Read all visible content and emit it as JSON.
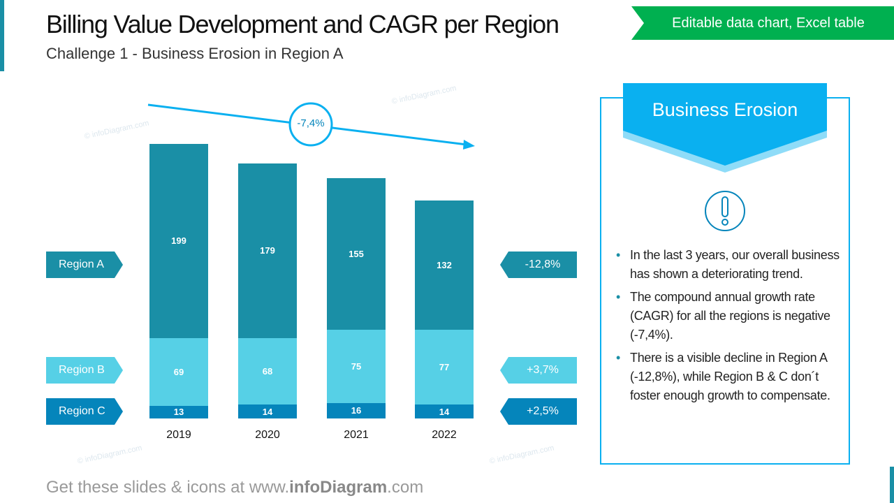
{
  "header": {
    "title": "Billing Value Development and CAGR per Region",
    "subtitle": "Challenge 1 - Business Erosion in Region A",
    "badge": "Editable data chart, Excel table"
  },
  "colors": {
    "region_a": "#1a8fa6",
    "region_b": "#56d0e6",
    "region_c": "#0585bb",
    "accent": "#0ab0f0",
    "badge": "#00b050"
  },
  "chart_data": {
    "type": "bar",
    "stacked": true,
    "categories": [
      "2019",
      "2020",
      "2021",
      "2022"
    ],
    "series": [
      {
        "name": "Region C",
        "values": [
          13,
          14,
          16,
          14
        ],
        "cagr": "+2,5%"
      },
      {
        "name": "Region B",
        "values": [
          69,
          68,
          75,
          77
        ],
        "cagr": "+3,7%"
      },
      {
        "name": "Region A",
        "values": [
          199,
          179,
          155,
          132
        ],
        "cagr": "-12,8%"
      }
    ],
    "total_cagr": "-7,4%"
  },
  "panel": {
    "title": "Business Erosion",
    "icon": "exclamation-icon",
    "bullets": [
      "In the last 3 years, our overall business has shown a deteriorating trend.",
      "The compound annual growth rate (CAGR) for all the regions is negative (-7,4%).",
      "There is a visible decline in Region A (-12,8%), while Region B & C don´t foster enough growth to compensate."
    ]
  },
  "watermark": "© infoDiagram.com",
  "footer": {
    "pre": "Get these slides & icons at www.",
    "brand": "infoDiagram",
    "post": ".com"
  }
}
